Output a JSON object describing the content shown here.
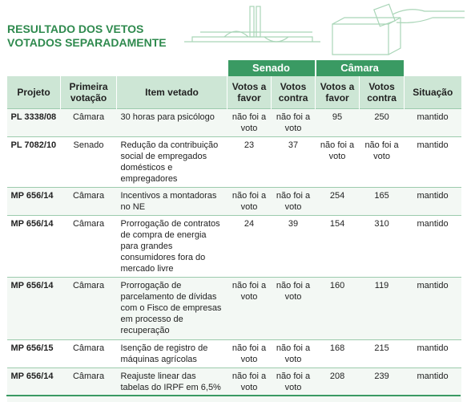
{
  "header": {
    "title_lines": [
      "RESULTADO DOS VETOS",
      "VOTADOS SEPARADAMENTE"
    ]
  },
  "table": {
    "groups": [
      "Senado",
      "Câmara"
    ],
    "columns": [
      "Projeto",
      "Primeira votação",
      "Item vetado",
      "Votos a favor",
      "Votos contra",
      "Votos a favor",
      "Votos contra",
      "Situação"
    ],
    "rows": [
      [
        "PL 3338/08",
        "Câmara",
        "30 horas para psicólogo",
        "não foi a voto",
        "não foi a voto",
        95,
        250,
        "mantido"
      ],
      [
        "PL 7082/10",
        "Senado",
        "Redução da contribuição social de empregados domésticos e empregadores",
        23,
        37,
        "não foi a voto",
        "não foi a voto",
        "mantido"
      ],
      [
        "MP 656/14",
        "Câmara",
        "Incentivos a montadoras no NE",
        "não foi a voto",
        "não foi a voto",
        254,
        165,
        "mantido"
      ],
      [
        "MP 656/14",
        "Câmara",
        "Prorrogação de contratos de compra de energia para grandes consumidores fora do mercado livre",
        24,
        39,
        154,
        310,
        "mantido"
      ],
      [
        "MP 656/14",
        "Câmara",
        "Prorrogação de parcelamento de dívidas com o Fisco de empresas em processo de recuperação",
        "não foi a voto",
        "não foi a voto",
        160,
        119,
        "mantido"
      ],
      [
        "MP 656/15",
        "Câmara",
        "Isenção de registro de máquinas agrícolas",
        "não foi a voto",
        "não foi a voto",
        168,
        215,
        "mantido"
      ],
      [
        "MP 656/14",
        "Câmara",
        "Reajuste linear das tabelas do IRPF em 6,5%",
        "não foi a voto",
        "não foi a voto",
        208,
        239,
        "mantido"
      ]
    ]
  }
}
